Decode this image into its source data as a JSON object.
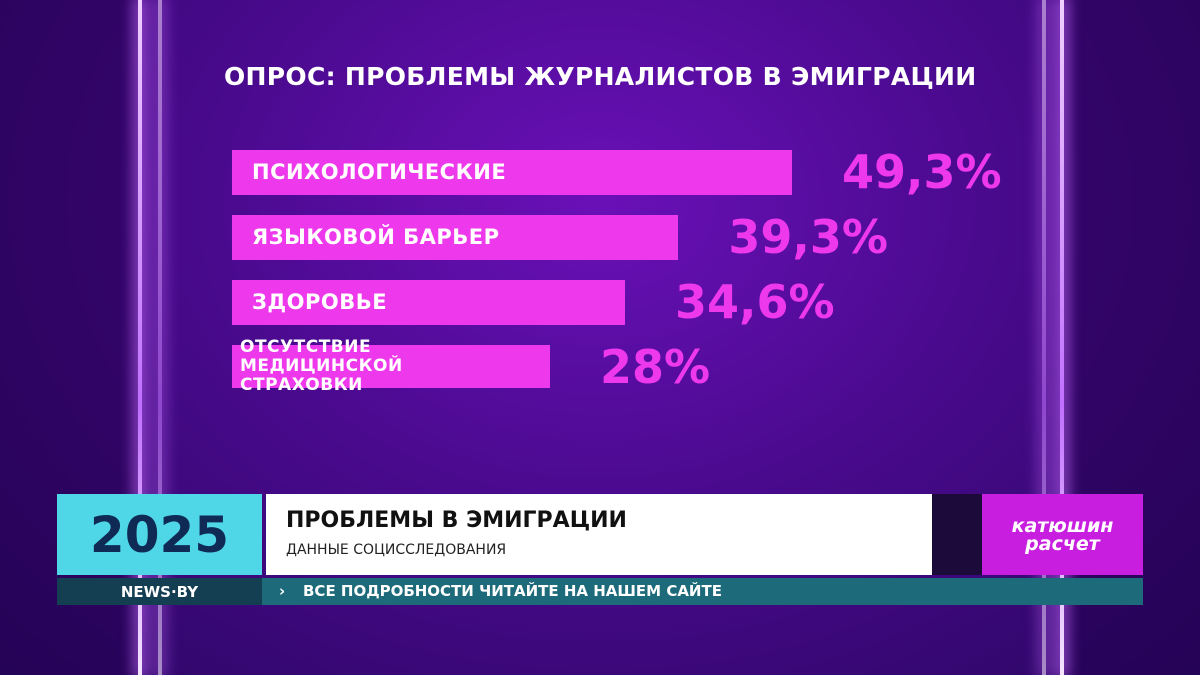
{
  "chart_data": {
    "type": "bar",
    "orientation": "horizontal",
    "title": "ОПРОС: ПРОБЛЕМЫ ЖУРНАЛИСТОВ В ЭМИГРАЦИИ",
    "categories": [
      "ПСИХОЛОГИЧЕСКИЕ",
      "ЯЗЫКОВОЙ БАРЬЕР",
      "ЗДОРОВЬЕ",
      "ОТСУТСТВИЕ МЕДИЦИНСКОЙ СТРАХОВКИ"
    ],
    "values": [
      49.3,
      39.3,
      34.6,
      28
    ],
    "value_labels": [
      "49,3%",
      "39,3%",
      "34,6%",
      "28%"
    ],
    "color": "#ee38ec"
  },
  "lower_third": {
    "year": "2025",
    "headline": "ПРОБЛЕМЫ В ЭМИГРАЦИИ",
    "subheadline": "ДАННЫЕ СОЦИССЛЕДОВАНИЯ",
    "logo": [
      "катюшин",
      "расчет"
    ]
  },
  "ticker": {
    "brand": "NEWS·BY",
    "text": "ВСЕ ПОДРОБНОСТИ ЧИТАЙТЕ НА НАШЕМ САЙТЕ"
  }
}
